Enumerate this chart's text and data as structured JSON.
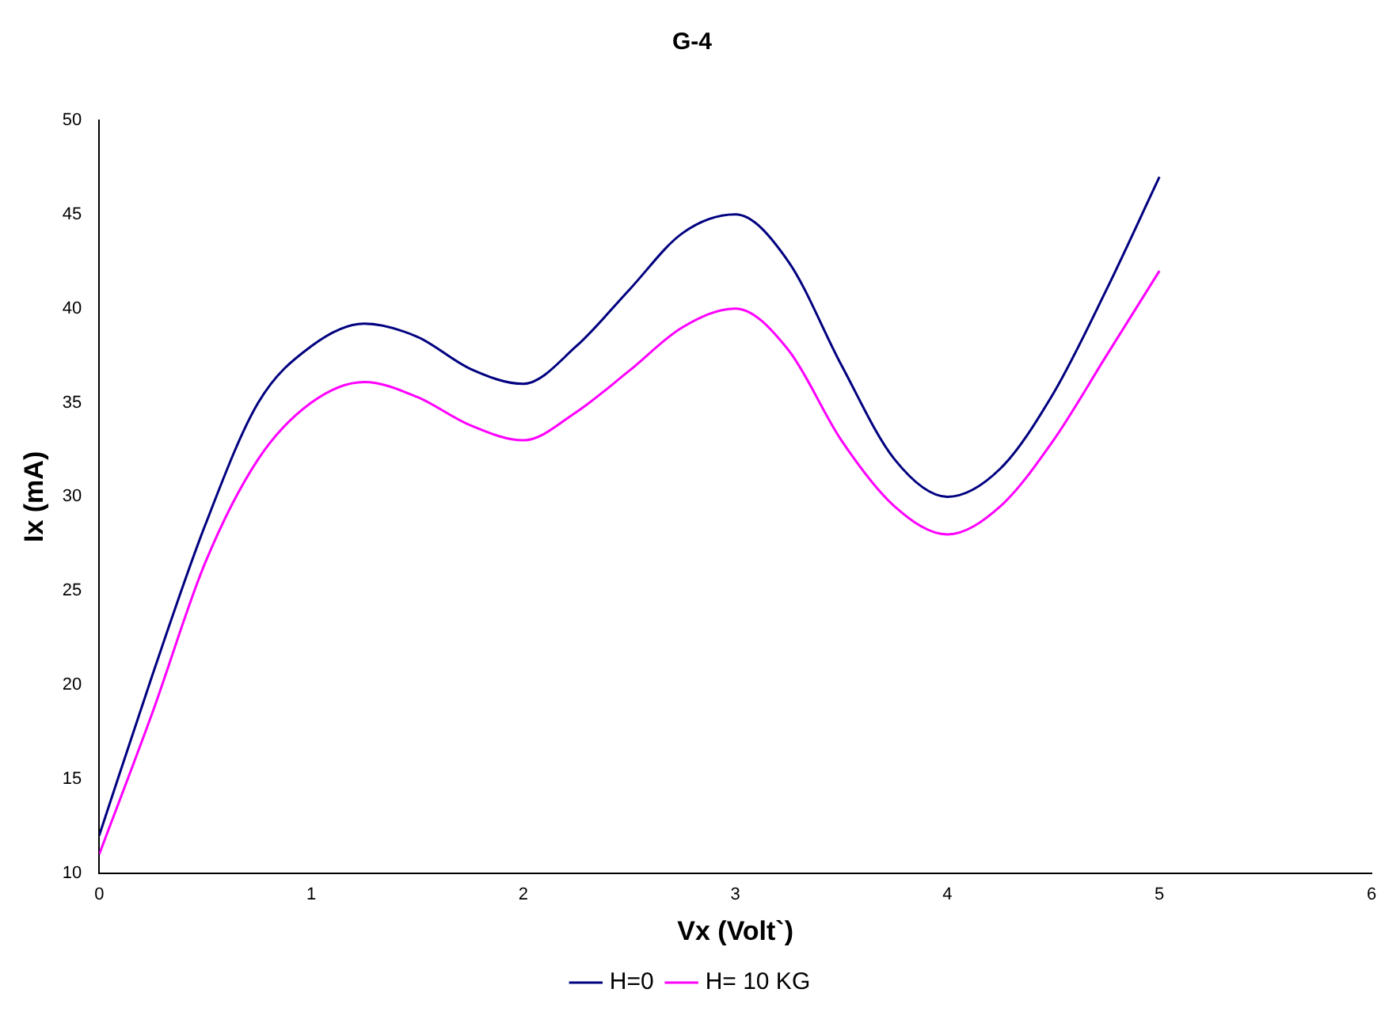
{
  "chart_data": {
    "type": "line",
    "title": "G-4",
    "xlabel": "Vx (Volt`)",
    "ylabel": "Ix (mA)",
    "x": [
      0,
      0.25,
      0.5,
      0.75,
      1,
      1.25,
      1.5,
      1.75,
      2,
      2.25,
      2.5,
      2.75,
      3,
      3.25,
      3.5,
      3.75,
      4,
      4.25,
      4.5,
      4.75,
      5
    ],
    "series": [
      {
        "name": "H=0",
        "color": "#000080",
        "values": [
          12,
          20.5,
          28.5,
          35,
          38,
          39.2,
          38.5,
          36.8,
          36,
          38,
          41,
          44,
          45,
          42.5,
          37,
          32,
          30,
          31.5,
          35.5,
          41,
          47
        ]
      },
      {
        "name": "H= 10 KG",
        "color": "#ff00ff",
        "values": [
          11,
          18.5,
          26.5,
          32,
          35,
          36.1,
          35.3,
          33.8,
          33,
          34.5,
          36.7,
          39,
          40,
          37.8,
          33,
          29.5,
          28,
          29.5,
          33,
          37.5,
          42
        ]
      }
    ],
    "xlim": [
      0,
      6
    ],
    "xticks": [
      0,
      1,
      2,
      3,
      4,
      5,
      6
    ],
    "ylim": [
      10,
      50
    ],
    "yticks": [
      10,
      15,
      20,
      25,
      30,
      35,
      40,
      45,
      50
    ],
    "grid": false,
    "legend": "bottom",
    "marker": "none",
    "line_style": "solid"
  }
}
